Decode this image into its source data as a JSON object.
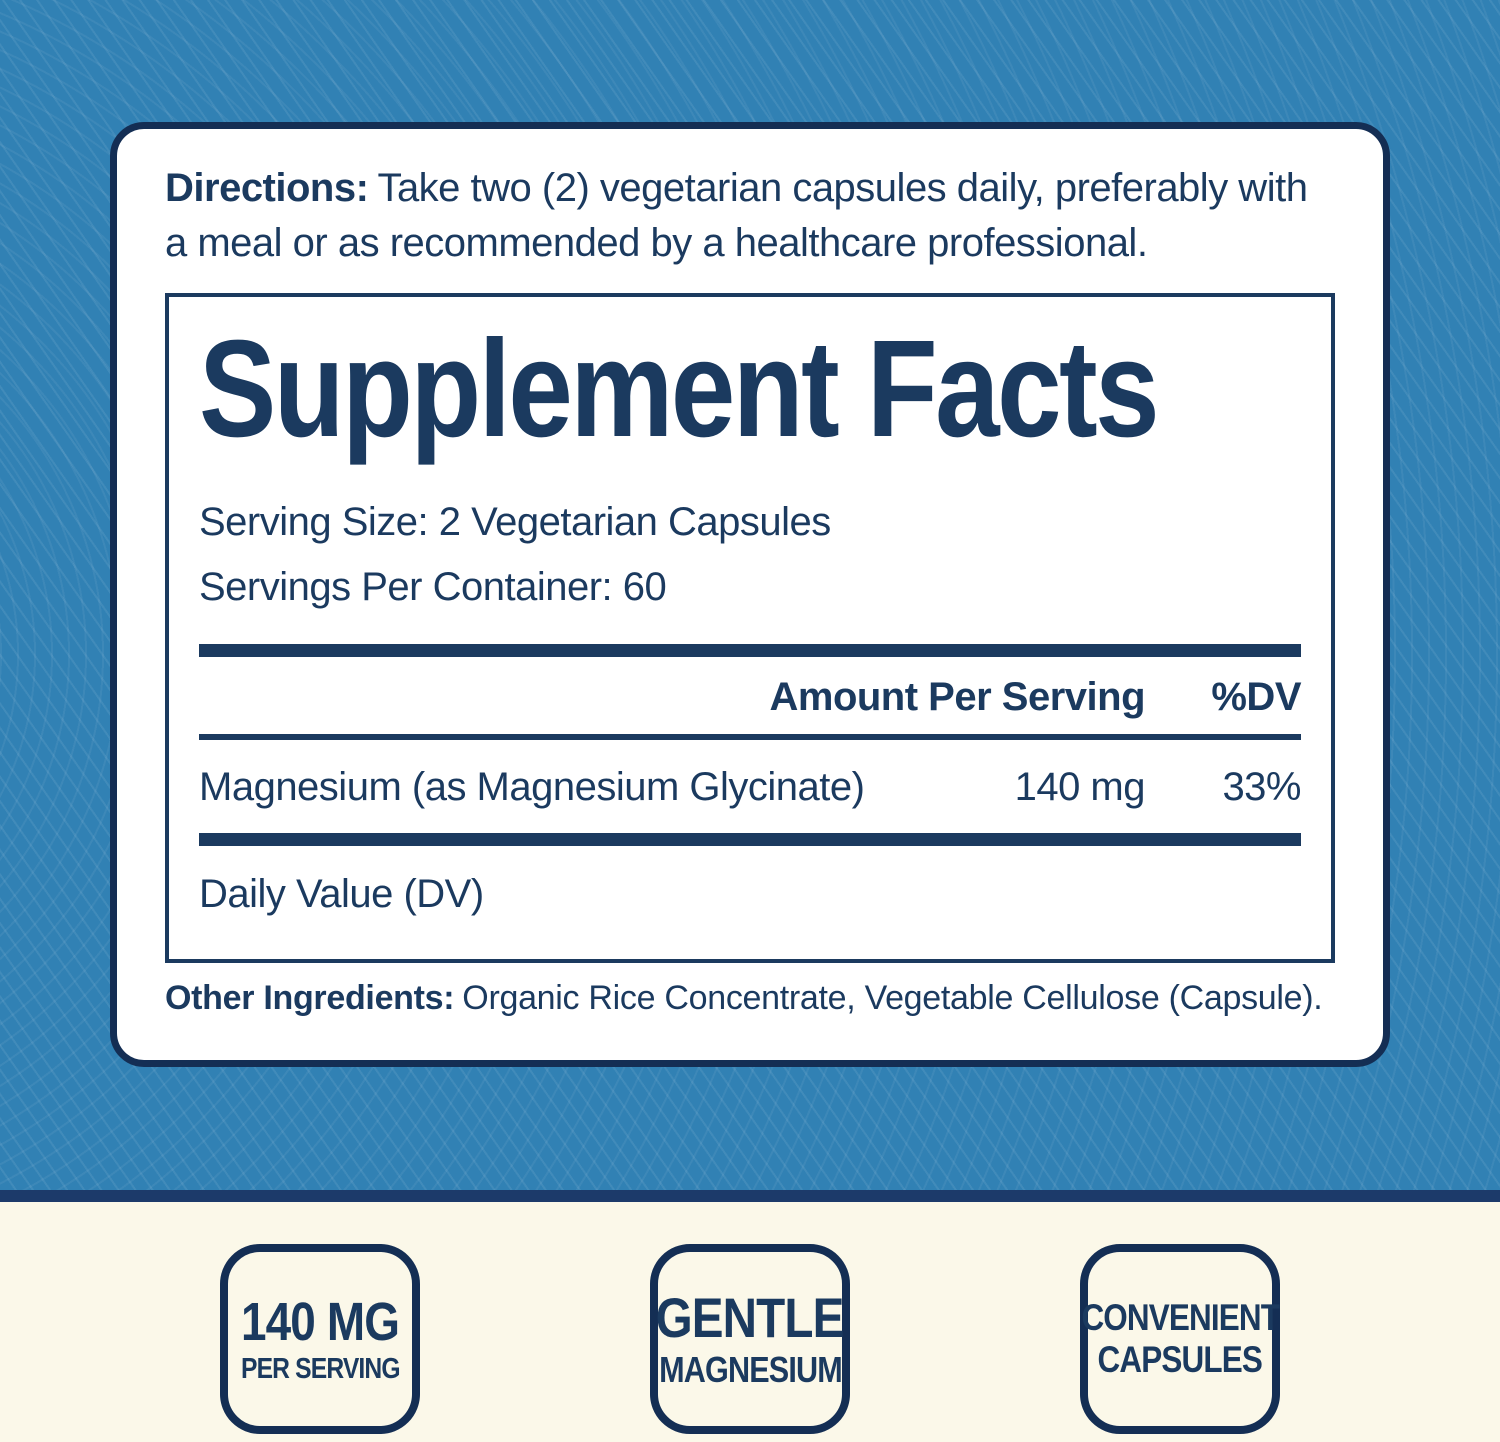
{
  "colors": {
    "background_blue": "#3181b4",
    "card_border_navy": "#142e54",
    "text_navy": "#1b3a5f",
    "divider_band_navy": "#1c3a6a",
    "cream": "#fbf8e9",
    "card_white": "#ffffff"
  },
  "directions": {
    "label": "Directions:",
    "text": "Take two (2) vegetarian capsules daily, preferably with a meal or as recommended by a healthcare professional."
  },
  "supplement_facts": {
    "title": "Supplement Facts",
    "serving_size": "Serving Size: 2 Vegetarian Capsules",
    "servings_per_container": "Servings Per Container: 60",
    "table": {
      "header": {
        "amount_label": "Amount Per Serving",
        "dv_label": "%DV"
      },
      "rows": [
        {
          "name": "Magnesium (as Magnesium Glycinate)",
          "amount": "140 mg",
          "dv": "33%"
        }
      ],
      "footnote": "Daily Value (DV)"
    }
  },
  "other_ingredients": {
    "label": "Other Ingredients:",
    "text": "Organic Rice Concentrate, Vegetable Cellulose (Capsule)."
  },
  "badges": [
    {
      "line1": "140 MG",
      "line2": "PER SERVING"
    },
    {
      "line1": "GENTLE",
      "line2": "MAGNESIUM"
    },
    {
      "line1": "CONVENIENT",
      "line2": "CAPSULES"
    }
  ]
}
